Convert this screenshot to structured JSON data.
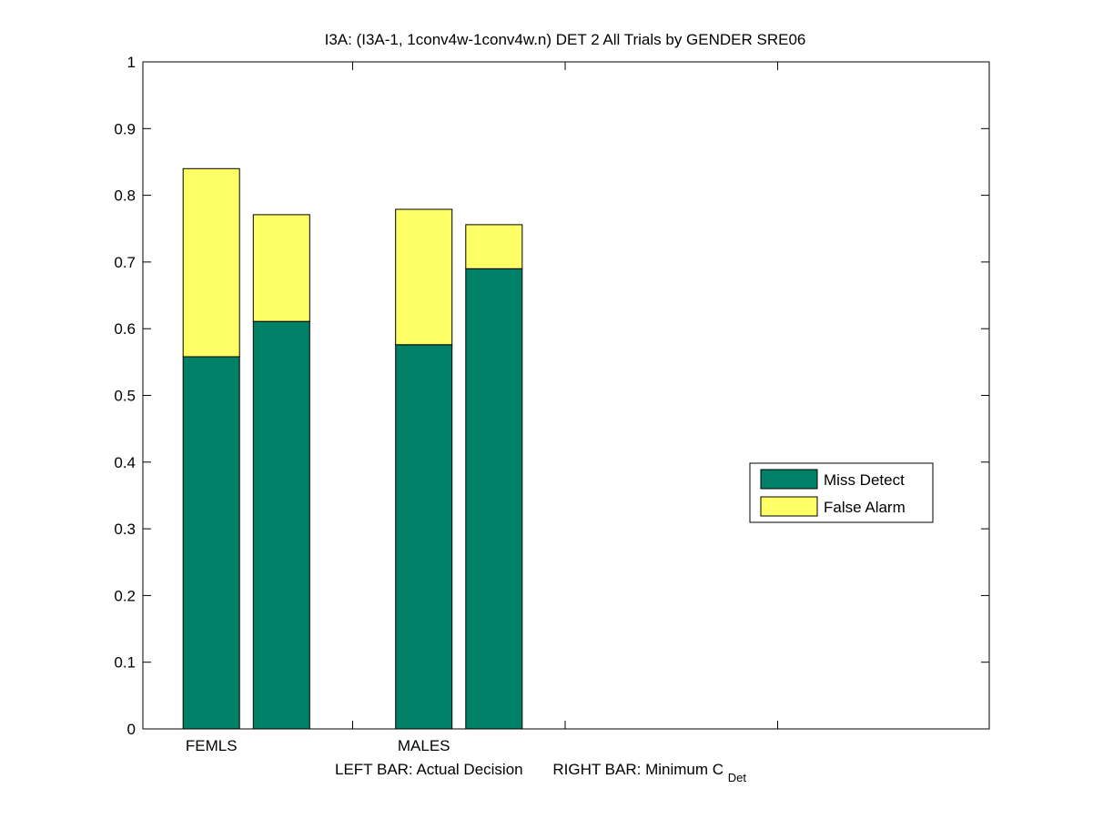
{
  "chart_data": {
    "type": "bar",
    "stacked": true,
    "title": "I3A: (I3A-1, 1conv4w-1conv4w.n) DET 2 All Trials by GENDER SRE06",
    "categories": [
      "FEMLS",
      "MALES"
    ],
    "bars_per_category": [
      "Actual Decision",
      "Minimum C_Det"
    ],
    "xlabel": {
      "left_prefix": "LEFT BAR:",
      "left_text": "Actual Decision",
      "right_prefix": "RIGHT BAR:",
      "right_text": "Minimum C",
      "right_subscript": "Det"
    },
    "ylim": [
      0,
      1
    ],
    "yticks": [
      "0",
      "0.1",
      "0.2",
      "0.3",
      "0.4",
      "0.5",
      "0.6",
      "0.7",
      "0.8",
      "0.9",
      "1"
    ],
    "series": [
      {
        "name": "Miss Detect",
        "color": "#008066",
        "values": [
          [
            0.558,
            0.611
          ],
          [
            0.576,
            0.69
          ]
        ]
      },
      {
        "name": "False Alarm",
        "color": "#ffff66",
        "values": [
          [
            0.282,
            0.16
          ],
          [
            0.203,
            0.066
          ]
        ]
      }
    ],
    "legend": {
      "position": "right-middle"
    },
    "grid": false
  }
}
